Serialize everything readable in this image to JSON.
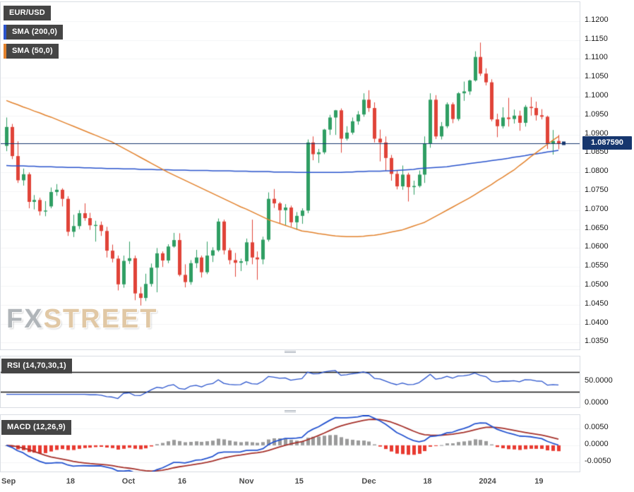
{
  "labels": {
    "symbol": "EUR/USD",
    "sma200": "SMA (200,0)",
    "sma50": "SMA (50,0)",
    "rsi": "RSI (14,70,30,1)",
    "macd": "MACD (12,26,9)",
    "watermark_fx": "FX",
    "watermark_street": "STREET",
    "current_price": "1.087590"
  },
  "colors": {
    "up": "#2f9e63",
    "down": "#e04338",
    "sma200": "#2953cc",
    "sma50": "#e2812b",
    "rsi": "#2953cc",
    "macd": "#2453cf",
    "macd_signal": "#a5302a",
    "hist_pos": "#9a9a9a",
    "hist_neg": "#e83a30",
    "price_line": "#16366e",
    "guide": "#141414",
    "badge_bg": "#454545",
    "grid": "#f3f4f6",
    "border": "#d9dde3"
  },
  "chart_data": [
    {
      "type": "candlestick",
      "title": "EUR/USD",
      "timeframe_labels": [
        "Sep",
        "18",
        "Oct",
        "16",
        "Nov",
        "15",
        "Dec",
        "18",
        "2024",
        "19"
      ],
      "ylim": [
        1.0332,
        1.125
      ],
      "y_ticks": [
        1.12,
        1.115,
        1.11,
        1.105,
        1.1,
        1.095,
        1.09,
        1.085,
        1.08,
        1.075,
        1.07,
        1.065,
        1.06,
        1.055,
        1.05,
        1.045,
        1.04,
        1.035
      ],
      "x_ticks": [
        {
          "label": "Sep",
          "index": 0
        },
        {
          "label": "18",
          "index": 12
        },
        {
          "label": "Oct",
          "index": 22
        },
        {
          "label": "16",
          "index": 32
        },
        {
          "label": "Nov",
          "index": 43
        },
        {
          "label": "15",
          "index": 53
        },
        {
          "label": "Dec",
          "index": 65
        },
        {
          "label": "18",
          "index": 76
        },
        {
          "label": "2024",
          "index": 86
        },
        {
          "label": "19",
          "index": 96
        }
      ],
      "current_price": 1.08759,
      "candles": [
        [
          1.087,
          1.0945,
          1.0856,
          1.092
        ],
        [
          1.092,
          1.0928,
          1.0835,
          1.0843
        ],
        [
          1.0843,
          1.0882,
          1.0772,
          1.0779
        ],
        [
          1.0779,
          1.081,
          1.0765,
          1.0795
        ],
        [
          1.0795,
          1.08,
          1.0705,
          1.0722
        ],
        [
          1.0722,
          1.074,
          1.0702,
          1.0727
        ],
        [
          1.0727,
          1.0733,
          1.0686,
          1.0697
        ],
        [
          1.0697,
          1.0724,
          1.0684,
          1.0699
        ],
        [
          1.071,
          1.076,
          1.0705,
          1.0748
        ],
        [
          1.0748,
          1.0769,
          1.0738,
          1.0754
        ],
        [
          1.0754,
          1.0758,
          1.071,
          1.073
        ],
        [
          1.073,
          1.0737,
          1.0632,
          1.0643
        ],
        [
          1.0643,
          1.0688,
          1.0629,
          1.0658
        ],
        [
          1.0658,
          1.07,
          1.065,
          1.0692
        ],
        [
          1.0692,
          1.0718,
          1.0672,
          1.0679
        ],
        [
          1.0679,
          1.0693,
          1.0648,
          1.066
        ],
        [
          1.066,
          1.0672,
          1.0617,
          1.0661
        ],
        [
          1.0661,
          1.067,
          1.0632,
          1.0645
        ],
        [
          1.0645,
          1.0656,
          1.0575,
          1.0593
        ],
        [
          1.0593,
          1.0609,
          1.0562,
          1.0572
        ],
        [
          1.0572,
          1.058,
          1.0488,
          1.0504
        ],
        [
          1.0504,
          1.058,
          1.0495,
          1.0566
        ],
        [
          1.0566,
          1.0617,
          1.0558,
          1.0573
        ],
        [
          1.0573,
          1.058,
          1.0462,
          1.048
        ],
        [
          1.048,
          1.0497,
          1.0448,
          1.0468
        ],
        [
          1.0468,
          1.0532,
          1.046,
          1.0505
        ],
        [
          1.0505,
          1.0559,
          1.0498,
          1.0548
        ],
        [
          1.0548,
          1.06,
          1.0483,
          1.0586
        ],
        [
          1.0586,
          1.0591,
          1.055,
          1.0567
        ],
        [
          1.0567,
          1.061,
          1.056,
          1.0604
        ],
        [
          1.0604,
          1.064,
          1.0601,
          1.0621
        ],
        [
          1.0621,
          1.0639,
          1.0525,
          1.0529
        ],
        [
          1.0529,
          1.0557,
          1.0496,
          1.051
        ],
        [
          1.051,
          1.0568,
          1.0503,
          1.056
        ],
        [
          1.056,
          1.0595,
          1.0547,
          1.0575
        ],
        [
          1.0575,
          1.058,
          1.0522,
          1.0536
        ],
        [
          1.0536,
          1.0617,
          1.0531,
          1.058
        ],
        [
          1.058,
          1.0602,
          1.0563,
          1.0594
        ],
        [
          1.0594,
          1.0678,
          1.059,
          1.067
        ],
        [
          1.067,
          1.0675,
          1.0583,
          1.0594
        ],
        [
          1.0594,
          1.06,
          1.0557,
          1.0568
        ],
        [
          1.0568,
          1.0587,
          1.0524,
          1.0561
        ],
        [
          1.0561,
          1.0572,
          1.0539,
          1.0565
        ],
        [
          1.0565,
          1.0625,
          1.0555,
          1.0615
        ],
        [
          1.0615,
          1.0675,
          1.0557,
          1.0575
        ],
        [
          1.0575,
          1.0591,
          1.0516,
          1.057
        ],
        [
          1.057,
          1.063,
          1.0557,
          1.0622
        ],
        [
          1.0622,
          1.0747,
          1.0617,
          1.073
        ],
        [
          1.073,
          1.0756,
          1.0706,
          1.0718
        ],
        [
          1.0718,
          1.0722,
          1.0664,
          1.07
        ],
        [
          1.07,
          1.0716,
          1.066,
          1.0707
        ],
        [
          1.0707,
          1.0712,
          1.0656,
          1.0668
        ],
        [
          1.0668,
          1.0695,
          1.0648,
          1.0685
        ],
        [
          1.0685,
          1.0705,
          1.0664,
          1.0699
        ],
        [
          1.0699,
          1.0887,
          1.0692,
          1.0879
        ],
        [
          1.0879,
          1.0895,
          1.0832,
          1.0848
        ],
        [
          1.0848,
          1.0862,
          1.0825,
          1.0853
        ],
        [
          1.0853,
          1.0915,
          1.0848,
          1.0913
        ],
        [
          1.0913,
          1.0952,
          1.0899,
          1.0945
        ],
        [
          1.0945,
          1.0965,
          1.0899,
          1.0964
        ],
        [
          1.0964,
          1.0969,
          1.0852,
          1.0889
        ],
        [
          1.0889,
          1.0922,
          1.0884,
          1.0905
        ],
        [
          1.0905,
          1.0945,
          1.09,
          1.0935
        ],
        [
          1.0935,
          1.0962,
          1.0926,
          1.0953
        ],
        [
          1.0953,
          1.1009,
          1.0947,
          1.0992
        ],
        [
          1.0992,
          1.1017,
          1.096,
          1.097
        ],
        [
          1.097,
          1.0985,
          1.0879,
          1.0889
        ],
        [
          1.0889,
          1.0913,
          1.0829,
          1.0879
        ],
        [
          1.0879,
          1.0895,
          1.0804,
          1.0838
        ],
        [
          1.0838,
          1.0846,
          1.0778,
          1.0796
        ],
        [
          1.0796,
          1.0804,
          1.0755,
          1.0763
        ],
        [
          1.0763,
          1.0818,
          1.0754,
          1.0794
        ],
        [
          1.0794,
          1.0799,
          1.0723,
          1.0761
        ],
        [
          1.0761,
          1.0778,
          1.0741,
          1.0764
        ],
        [
          1.0764,
          1.0805,
          1.076,
          1.0794
        ],
        [
          1.0794,
          1.0895,
          1.0772,
          1.0875
        ],
        [
          1.0875,
          1.1009,
          1.0865,
          1.0992
        ],
        [
          1.0992,
          1.1004,
          1.0888,
          1.0895
        ],
        [
          1.0895,
          1.0933,
          1.0887,
          1.0922
        ],
        [
          1.0922,
          1.0985,
          1.0917,
          1.098
        ],
        [
          1.098,
          1.0985,
          1.093,
          1.0941
        ],
        [
          1.0941,
          1.1012,
          1.0936,
          1.1009
        ],
        [
          1.1009,
          1.104,
          1.0989,
          1.1014
        ],
        [
          1.1014,
          1.1045,
          1.1005,
          1.1043
        ],
        [
          1.1043,
          1.112,
          1.104,
          1.1105
        ],
        [
          1.1105,
          1.1143,
          1.1055,
          1.1061
        ],
        [
          1.1061,
          1.1075,
          1.103,
          1.1038
        ],
        [
          1.1038,
          1.1046,
          1.0935,
          1.094
        ],
        [
          1.094,
          1.0955,
          1.0893,
          1.0922
        ],
        [
          1.0922,
          1.0972,
          1.0916,
          1.0945
        ],
        [
          1.0945,
          1.0997,
          1.0921,
          1.0941
        ],
        [
          1.0941,
          1.0966,
          1.0929,
          1.095
        ],
        [
          1.095,
          1.0963,
          1.091,
          1.0931
        ],
        [
          1.0931,
          1.0978,
          1.0921,
          1.0973
        ],
        [
          1.0973,
          1.0999,
          1.095,
          1.097
        ],
        [
          1.097,
          1.0987,
          1.0937,
          1.0951
        ],
        [
          1.0951,
          1.0967,
          1.094,
          1.0947
        ],
        [
          1.0947,
          1.095,
          1.0862,
          1.0875
        ],
        [
          1.0875,
          1.0912,
          1.0847,
          1.0883
        ],
        [
          1.0883,
          1.0899,
          1.0861,
          1.0876
        ]
      ],
      "overlays": [
        {
          "name": "SMA (200,0)",
          "color_key": "sma200",
          "values": [
            1.0818,
            1.0817,
            1.0817,
            1.0817,
            1.0816,
            1.0816,
            1.0815,
            1.0815,
            1.0815,
            1.0814,
            1.0814,
            1.0813,
            1.0813,
            1.0813,
            1.0812,
            1.0812,
            1.0811,
            1.0811,
            1.081,
            1.081,
            1.081,
            1.0809,
            1.0809,
            1.0809,
            1.0808,
            1.0808,
            1.0808,
            1.0807,
            1.0807,
            1.0807,
            1.0806,
            1.0806,
            1.0806,
            1.0805,
            1.0805,
            1.0805,
            1.0805,
            1.0804,
            1.0804,
            1.0804,
            1.0804,
            1.0803,
            1.0803,
            1.0803,
            1.0802,
            1.0802,
            1.0802,
            1.0802,
            1.0801,
            1.0801,
            1.0801,
            1.0801,
            1.08,
            1.08,
            1.08,
            1.08,
            1.08,
            1.08,
            1.08,
            1.08,
            1.08,
            1.0801,
            1.0801,
            1.0802,
            1.0802,
            1.0803,
            1.0803,
            1.0803,
            1.0804,
            1.0804,
            1.0805,
            1.0806,
            1.0807,
            1.0808,
            1.081,
            1.0811,
            1.0812,
            1.0813,
            1.0814,
            1.0815,
            1.0817,
            1.0819,
            1.0821,
            1.0823,
            1.0825,
            1.0827,
            1.0829,
            1.0831,
            1.0833,
            1.0835,
            1.0837,
            1.084,
            1.0842,
            1.0844,
            1.0847,
            1.0849,
            1.0851,
            1.0854,
            1.0856,
            1.0858
          ]
        },
        {
          "name": "SMA (50,0)",
          "color_key": "sma50",
          "values": [
            1.099,
            1.0984,
            1.0979,
            1.0973,
            1.0968,
            1.0962,
            1.0957,
            1.0951,
            1.0946,
            1.094,
            1.0934,
            1.0928,
            1.0922,
            1.0916,
            1.091,
            1.0904,
            1.0898,
            1.0892,
            1.0886,
            1.088,
            1.0872,
            1.0864,
            1.0856,
            1.0848,
            1.084,
            1.0832,
            1.0824,
            1.0816,
            1.0808,
            1.08,
            1.0793,
            1.0786,
            1.0779,
            1.0772,
            1.0765,
            1.0758,
            1.0751,
            1.0744,
            1.0737,
            1.073,
            1.0723,
            1.0716,
            1.0709,
            1.0703,
            1.0696,
            1.0689,
            1.0682,
            1.0675,
            1.067,
            1.0665,
            1.066,
            1.0655,
            1.065,
            1.0645,
            1.0643,
            1.0641,
            1.0638,
            1.0636,
            1.0634,
            1.0632,
            1.0631,
            1.063,
            1.063,
            1.063,
            1.0631,
            1.0633,
            1.0634,
            1.0636,
            1.0639,
            1.0642,
            1.0645,
            1.0648,
            1.0653,
            1.0658,
            1.0663,
            1.0668,
            1.0676,
            1.0684,
            1.0692,
            1.07,
            1.0708,
            1.0716,
            1.0724,
            1.0732,
            1.0741,
            1.075,
            1.0759,
            1.0768,
            1.0778,
            1.0787,
            1.0797,
            1.0806,
            1.0818,
            1.0829,
            1.0841,
            1.0852,
            1.0863,
            1.0874,
            1.0885,
            1.0895
          ]
        }
      ]
    },
    {
      "type": "line",
      "name": "RSI",
      "label": "RSI (14,70,30,1)",
      "params": {
        "period": 14,
        "overbought": 70,
        "oversold": 30,
        "smoothing": 1
      },
      "ylim": [
        0,
        100
      ],
      "y_ticks": [
        50,
        0
      ],
      "derived_from": "candles.close"
    },
    {
      "type": "macd",
      "name": "MACD",
      "label": "MACD (12,26,9)",
      "params": {
        "fast": 12,
        "slow": 26,
        "signal": 9
      },
      "ylim": [
        -0.0078,
        0.009
      ],
      "y_ticks": [
        0.005,
        0,
        -0.005
      ],
      "derived_from": "candles.close"
    }
  ]
}
